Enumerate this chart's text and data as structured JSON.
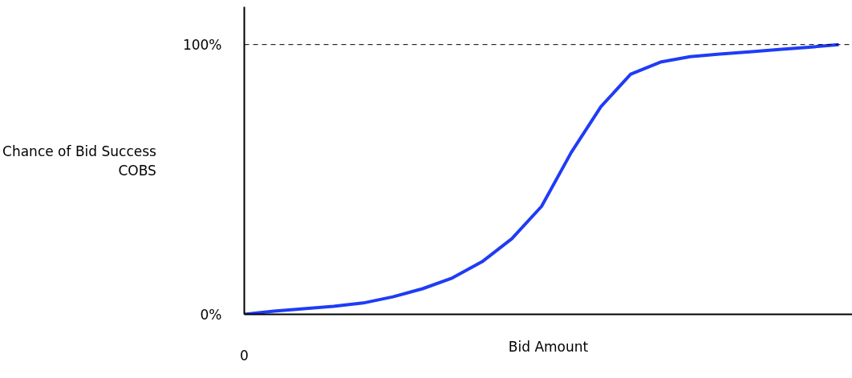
{
  "chart_data": {
    "type": "line",
    "xlabel": "Bid Amount",
    "ylabel": "Chance of Bid Success\nCOBS",
    "categories": [
      "0",
      null,
      null,
      null,
      null,
      null,
      null,
      null,
      null,
      null,
      null,
      null,
      null,
      null,
      null,
      null,
      null,
      null,
      null,
      null,
      null
    ],
    "series": [
      {
        "color": "#1f3cf5",
        "values": [
          0,
          1.2,
          2.1,
          3,
          4.2,
          6.5,
          9.5,
          13.5,
          19.5,
          28,
          40,
          60,
          77,
          89,
          93.5,
          95.5,
          96.5,
          97.3,
          98.2,
          99,
          100
        ]
      }
    ],
    "ylim": [
      0,
      114
    ],
    "yticks": [
      {
        "value": 0,
        "label": "0%"
      },
      {
        "value": 100,
        "label": "100%"
      }
    ],
    "ref_lines": [
      {
        "axis": "y",
        "value": 100,
        "line_style": "dashed",
        "color": "#000000"
      }
    ],
    "grid": false,
    "line_style": "solid",
    "marker": "none"
  }
}
